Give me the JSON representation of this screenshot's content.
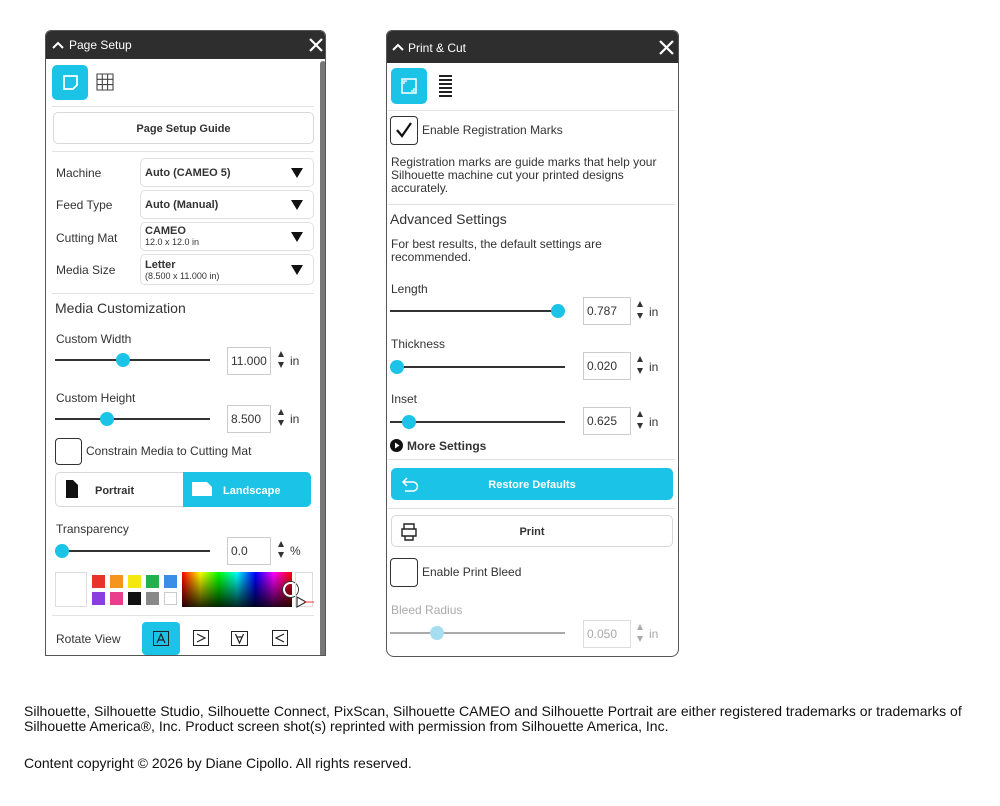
{
  "page_setup": {
    "title": "Page Setup",
    "guide_button": "Page Setup Guide",
    "fields": [
      {
        "label": "Machine",
        "value": "Auto (CAMEO 5)"
      },
      {
        "label": "Feed Type",
        "value": "Auto (Manual)"
      },
      {
        "label": "Cutting Mat",
        "value": "CAMEO",
        "detail": "12.0 x 12.0 in"
      },
      {
        "label": "Media Size",
        "value": "Letter",
        "detail": "(8.500 x 11.000 in)"
      }
    ],
    "section": "Media Customization",
    "custom_width": {
      "label": "Custom Width",
      "value": "11.000",
      "unit": "in"
    },
    "custom_height": {
      "label": "Custom Height",
      "value": "8.500",
      "unit": "in"
    },
    "constrain": "Constrain Media to Cutting Mat",
    "orientation": [
      "Portrait",
      "Landscape"
    ],
    "transparency": {
      "label": "Transparency",
      "value": "0.0",
      "unit": "%"
    },
    "rotate_view": "Rotate View"
  },
  "print_cut": {
    "title": "Print & Cut",
    "registration": "Enable Registration Marks",
    "registration_note": "Registration marks are guide marks that help your Silhouette machine cut your printed designs accurately.",
    "section": "Advanced Settings",
    "advice": "For best results, the default settings are recommended.",
    "sliders": [
      {
        "label": "Length",
        "value": "0.787",
        "unit": "in"
      },
      {
        "label": "Thickness",
        "value": "0.020",
        "unit": "in"
      },
      {
        "label": "Inset",
        "value": "0.625",
        "unit": "in"
      }
    ],
    "more_settings": "More Settings",
    "restore": "Restore Defaults",
    "print": "Print",
    "print_bleed": "Enable Print Bleed",
    "bleed_radius": {
      "label": "Bleed Radius",
      "value": "0.050",
      "unit": "in"
    }
  },
  "footer": {
    "trademarks": "Silhouette, Silhouette Studio, Silhouette Connect, PixScan, Silhouette CAMEO and Silhouette Portrait are either registered trademarks or trademarks of Silhouette America®, Inc. Product screen shot(s) reprinted with permission from Silhouette America, Inc.",
    "copyright": "Content copyright © 2026 by Diane Cipollo. All rights reserved."
  }
}
